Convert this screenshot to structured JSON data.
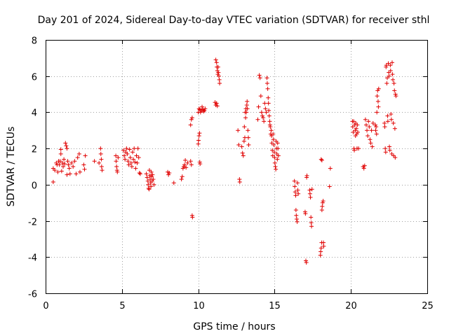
{
  "chart_data": {
    "type": "scatter",
    "title": "Day 201 of 2024, Sidereal Day-to-day VTEC variation (SDTVAR) for receiver sthl",
    "xlabel": "GPS time / hours",
    "ylabel": "SDTVAR / TECUs",
    "xlim": [
      0,
      25
    ],
    "ylim": [
      -6,
      8
    ],
    "xticks": [
      0,
      5,
      10,
      15,
      20,
      25
    ],
    "yticks": [
      -6,
      -4,
      -2,
      0,
      2,
      4,
      6,
      8
    ],
    "xtick_labels": [
      "0",
      "5",
      "10",
      "15",
      "20",
      "25"
    ],
    "ytick_labels": [
      "-6",
      "-4",
      "-2",
      "0",
      "2",
      "4",
      "6",
      "8"
    ],
    "grid": true,
    "marker": "+",
    "color": "#e00000",
    "series": [
      {
        "name": "sthl",
        "points": [
          [
            0.5,
            0.9
          ],
          [
            0.5,
            0.15
          ],
          [
            0.6,
            0.8
          ],
          [
            0.7,
            1.2
          ],
          [
            0.75,
            1.1
          ],
          [
            0.8,
            0.7
          ],
          [
            0.85,
            1.3
          ],
          [
            0.9,
            1.1
          ],
          [
            0.95,
            1.3
          ],
          [
            1.0,
            1.7
          ],
          [
            1.0,
            1.95
          ],
          [
            1.05,
            0.75
          ],
          [
            1.1,
            1.2
          ],
          [
            1.15,
            1.0
          ],
          [
            1.2,
            1.4
          ],
          [
            1.25,
            1.15
          ],
          [
            1.3,
            2.3
          ],
          [
            1.35,
            2.15
          ],
          [
            1.4,
            2.0
          ],
          [
            1.4,
            0.55
          ],
          [
            1.45,
            1.3
          ],
          [
            1.5,
            1.1
          ],
          [
            1.55,
            0.9
          ],
          [
            1.6,
            0.6
          ],
          [
            1.7,
            1.2
          ],
          [
            1.8,
            1.0
          ],
          [
            1.9,
            1.3
          ],
          [
            2.0,
            0.6
          ],
          [
            2.1,
            1.5
          ],
          [
            2.2,
            1.7
          ],
          [
            2.25,
            0.7
          ],
          [
            2.5,
            1.1
          ],
          [
            2.55,
            0.85
          ],
          [
            2.6,
            1.6
          ],
          [
            3.2,
            1.3
          ],
          [
            3.5,
            1.2
          ],
          [
            3.6,
            2.0
          ],
          [
            3.62,
            1.7
          ],
          [
            3.65,
            1.4
          ],
          [
            3.67,
            1.0
          ],
          [
            3.7,
            0.8
          ],
          [
            4.6,
            1.6
          ],
          [
            4.62,
            1.3
          ],
          [
            4.65,
            1.0
          ],
          [
            4.68,
            0.8
          ],
          [
            4.7,
            0.7
          ],
          [
            4.75,
            1.5
          ],
          [
            5.1,
            1.9
          ],
          [
            5.15,
            1.6
          ],
          [
            5.2,
            1.4
          ],
          [
            5.25,
            1.8
          ],
          [
            5.3,
            2.0
          ],
          [
            5.35,
            1.7
          ],
          [
            5.4,
            1.3
          ],
          [
            5.45,
            1.1
          ],
          [
            5.5,
            1.95
          ],
          [
            5.55,
            1.5
          ],
          [
            5.6,
            1.2
          ],
          [
            5.65,
            1.0
          ],
          [
            5.7,
            1.8
          ],
          [
            5.75,
            1.4
          ],
          [
            5.8,
            2.0
          ],
          [
            5.85,
            1.25
          ],
          [
            5.9,
            0.9
          ],
          [
            5.95,
            1.6
          ],
          [
            6.0,
            1.2
          ],
          [
            6.05,
            2.0
          ],
          [
            6.1,
            1.5
          ],
          [
            6.15,
            0.65
          ],
          [
            6.2,
            0.6
          ],
          [
            6.6,
            0.6
          ],
          [
            6.65,
            0.4
          ],
          [
            6.7,
            0.2
          ],
          [
            6.72,
            0.0
          ],
          [
            6.75,
            -0.2
          ],
          [
            6.78,
            -0.25
          ],
          [
            6.8,
            0.8
          ],
          [
            6.82,
            0.5
          ],
          [
            6.85,
            0.3
          ],
          [
            6.88,
            0.1
          ],
          [
            6.9,
            -0.1
          ],
          [
            6.92,
            0.7
          ],
          [
            6.95,
            0.45
          ],
          [
            6.98,
            0.2
          ],
          [
            7.0,
            0.55
          ],
          [
            7.05,
            0.3
          ],
          [
            7.1,
            0.0
          ],
          [
            8.0,
            0.7
          ],
          [
            8.05,
            0.55
          ],
          [
            8.1,
            0.65
          ],
          [
            8.4,
            0.1
          ],
          [
            8.9,
            0.3
          ],
          [
            8.95,
            0.45
          ],
          [
            9.0,
            0.9
          ],
          [
            9.05,
            1.0
          ],
          [
            9.1,
            1.1
          ],
          [
            9.15,
            1.35
          ],
          [
            9.2,
            0.95
          ],
          [
            9.3,
            1.2
          ],
          [
            9.5,
            1.3
          ],
          [
            9.55,
            1.1
          ],
          [
            9.6,
            -1.7
          ],
          [
            9.62,
            -1.8
          ],
          [
            9.5,
            3.3
          ],
          [
            9.55,
            3.6
          ],
          [
            9.6,
            3.7
          ],
          [
            10.0,
            2.25
          ],
          [
            10.02,
            2.45
          ],
          [
            10.05,
            2.7
          ],
          [
            10.08,
            2.85
          ],
          [
            10.1,
            1.25
          ],
          [
            10.12,
            1.15
          ],
          [
            10.0,
            4.0
          ],
          [
            10.05,
            4.2
          ],
          [
            10.1,
            4.15
          ],
          [
            10.15,
            4.0
          ],
          [
            10.2,
            4.1
          ],
          [
            10.25,
            4.3
          ],
          [
            10.3,
            4.15
          ],
          [
            10.35,
            4.05
          ],
          [
            10.4,
            4.1
          ],
          [
            10.45,
            4.2
          ],
          [
            11.1,
            4.55
          ],
          [
            11.15,
            4.4
          ],
          [
            11.2,
            4.5
          ],
          [
            11.25,
            4.35
          ],
          [
            11.15,
            6.9
          ],
          [
            11.2,
            6.75
          ],
          [
            11.22,
            6.5
          ],
          [
            11.25,
            6.3
          ],
          [
            11.28,
            6.1
          ],
          [
            11.3,
            6.5
          ],
          [
            11.32,
            6.2
          ],
          [
            11.35,
            6.0
          ],
          [
            11.38,
            5.8
          ],
          [
            11.4,
            5.6
          ],
          [
            12.6,
            3.0
          ],
          [
            12.65,
            2.2
          ],
          [
            12.7,
            0.3
          ],
          [
            12.72,
            0.15
          ],
          [
            12.85,
            2.1
          ],
          [
            12.9,
            1.75
          ],
          [
            12.95,
            1.6
          ],
          [
            13.0,
            2.4
          ],
          [
            13.02,
            3.2
          ],
          [
            13.05,
            2.6
          ],
          [
            13.07,
            4.0
          ],
          [
            13.1,
            3.7
          ],
          [
            13.12,
            4.2
          ],
          [
            13.15,
            4.0
          ],
          [
            13.18,
            4.4
          ],
          [
            13.2,
            4.6
          ],
          [
            13.22,
            4.2
          ],
          [
            13.25,
            3.0
          ],
          [
            13.28,
            2.6
          ],
          [
            13.3,
            2.2
          ],
          [
            13.9,
            3.6
          ],
          [
            13.95,
            4.3
          ],
          [
            14.0,
            6.05
          ],
          [
            14.05,
            5.9
          ],
          [
            14.1,
            4.9
          ],
          [
            14.15,
            4.0
          ],
          [
            14.2,
            3.8
          ],
          [
            14.25,
            3.7
          ],
          [
            14.3,
            3.5
          ],
          [
            14.35,
            4.5
          ],
          [
            14.4,
            4.2
          ],
          [
            14.45,
            4.0
          ],
          [
            14.5,
            5.9
          ],
          [
            14.52,
            5.6
          ],
          [
            14.55,
            5.3
          ],
          [
            14.58,
            4.8
          ],
          [
            14.6,
            4.5
          ],
          [
            14.62,
            4.1
          ],
          [
            14.65,
            3.8
          ],
          [
            14.68,
            3.5
          ],
          [
            14.7,
            3.3
          ],
          [
            14.72,
            3.2
          ],
          [
            14.75,
            2.8
          ],
          [
            14.78,
            3.0
          ],
          [
            14.8,
            2.7
          ],
          [
            14.82,
            2.3
          ],
          [
            14.85,
            1.9
          ],
          [
            14.88,
            1.6
          ],
          [
            14.9,
            2.8
          ],
          [
            14.92,
            2.5
          ],
          [
            14.95,
            2.2
          ],
          [
            14.98,
            1.8
          ],
          [
            15.0,
            1.5
          ],
          [
            15.02,
            1.2
          ],
          [
            15.05,
            1.0
          ],
          [
            15.08,
            0.85
          ],
          [
            15.1,
            2.4
          ],
          [
            15.12,
            2.0
          ],
          [
            15.15,
            1.7
          ],
          [
            15.18,
            1.4
          ],
          [
            15.2,
            2.3
          ],
          [
            15.22,
            2.0
          ],
          [
            15.25,
            1.6
          ],
          [
            16.3,
            0.2
          ],
          [
            16.32,
            -0.1
          ],
          [
            16.35,
            -0.4
          ],
          [
            16.38,
            -0.6
          ],
          [
            16.4,
            -1.4
          ],
          [
            16.42,
            -1.7
          ],
          [
            16.45,
            -1.9
          ],
          [
            16.48,
            -2.05
          ],
          [
            16.5,
            0.1
          ],
          [
            16.52,
            -0.3
          ],
          [
            16.55,
            -0.5
          ],
          [
            17.0,
            -1.5
          ],
          [
            17.02,
            -1.6
          ],
          [
            17.05,
            -4.2
          ],
          [
            17.08,
            -4.3
          ],
          [
            17.1,
            0.4
          ],
          [
            17.12,
            0.5
          ],
          [
            17.3,
            -0.3
          ],
          [
            17.32,
            -0.5
          ],
          [
            17.35,
            -0.7
          ],
          [
            17.38,
            -1.8
          ],
          [
            17.4,
            -2.1
          ],
          [
            17.42,
            -2.3
          ],
          [
            17.45,
            -0.25
          ],
          [
            18.0,
            -3.9
          ],
          [
            18.02,
            -3.7
          ],
          [
            18.05,
            -3.5
          ],
          [
            18.08,
            -3.2
          ],
          [
            18.1,
            -1.4
          ],
          [
            18.12,
            -1.2
          ],
          [
            18.15,
            -1.0
          ],
          [
            18.18,
            -0.9
          ],
          [
            18.2,
            -3.2
          ],
          [
            18.22,
            -3.4
          ],
          [
            18.05,
            1.4
          ],
          [
            18.1,
            1.35
          ],
          [
            18.6,
            -0.1
          ],
          [
            18.65,
            0.9
          ],
          [
            20.1,
            3.5
          ],
          [
            20.12,
            3.2
          ],
          [
            20.15,
            2.9
          ],
          [
            20.18,
            3.5
          ],
          [
            20.2,
            2.0
          ],
          [
            20.22,
            1.9
          ],
          [
            20.25,
            3.3
          ],
          [
            20.28,
            3.0
          ],
          [
            20.3,
            2.7
          ],
          [
            20.32,
            3.4
          ],
          [
            20.35,
            3.1
          ],
          [
            20.38,
            2.8
          ],
          [
            20.4,
            2.0
          ],
          [
            20.42,
            3.3
          ],
          [
            20.45,
            2.9
          ],
          [
            20.5,
            2.0
          ],
          [
            20.8,
            1.0
          ],
          [
            20.85,
            0.9
          ],
          [
            20.9,
            1.05
          ],
          [
            20.95,
            3.6
          ],
          [
            21.0,
            3.3
          ],
          [
            21.05,
            3.0
          ],
          [
            21.1,
            2.7
          ],
          [
            21.15,
            3.5
          ],
          [
            21.2,
            3.2
          ],
          [
            21.25,
            2.5
          ],
          [
            21.3,
            2.3
          ],
          [
            21.35,
            3.0
          ],
          [
            21.4,
            2.1
          ],
          [
            21.45,
            3.4
          ],
          [
            21.6,
            3.3
          ],
          [
            21.62,
            3.0
          ],
          [
            21.65,
            3.2
          ],
          [
            21.68,
            2.8
          ],
          [
            21.7,
            4.0
          ],
          [
            21.72,
            4.9
          ],
          [
            21.75,
            5.2
          ],
          [
            21.78,
            4.6
          ],
          [
            21.8,
            4.3
          ],
          [
            21.82,
            5.3
          ],
          [
            22.2,
            3.4
          ],
          [
            22.22,
            3.2
          ],
          [
            22.25,
            2.0
          ],
          [
            22.28,
            1.8
          ],
          [
            22.3,
            6.5
          ],
          [
            22.32,
            6.6
          ],
          [
            22.35,
            5.6
          ],
          [
            22.38,
            5.9
          ],
          [
            22.4,
            3.8
          ],
          [
            22.42,
            3.5
          ],
          [
            22.45,
            6.7
          ],
          [
            22.48,
            6.2
          ],
          [
            22.5,
            6.0
          ],
          [
            22.52,
            2.1
          ],
          [
            22.55,
            1.9
          ],
          [
            22.58,
            6.6
          ],
          [
            22.6,
            6.3
          ],
          [
            22.62,
            3.9
          ],
          [
            22.65,
            3.6
          ],
          [
            22.68,
            1.7
          ],
          [
            22.7,
            6.75
          ],
          [
            22.72,
            6.1
          ],
          [
            22.75,
            5.8
          ],
          [
            22.78,
            3.4
          ],
          [
            22.8,
            1.6
          ],
          [
            22.82,
            5.6
          ],
          [
            22.85,
            5.2
          ],
          [
            22.88,
            3.1
          ],
          [
            22.9,
            1.5
          ],
          [
            22.92,
            5.0
          ],
          [
            22.95,
            4.9
          ]
        ]
      }
    ]
  }
}
